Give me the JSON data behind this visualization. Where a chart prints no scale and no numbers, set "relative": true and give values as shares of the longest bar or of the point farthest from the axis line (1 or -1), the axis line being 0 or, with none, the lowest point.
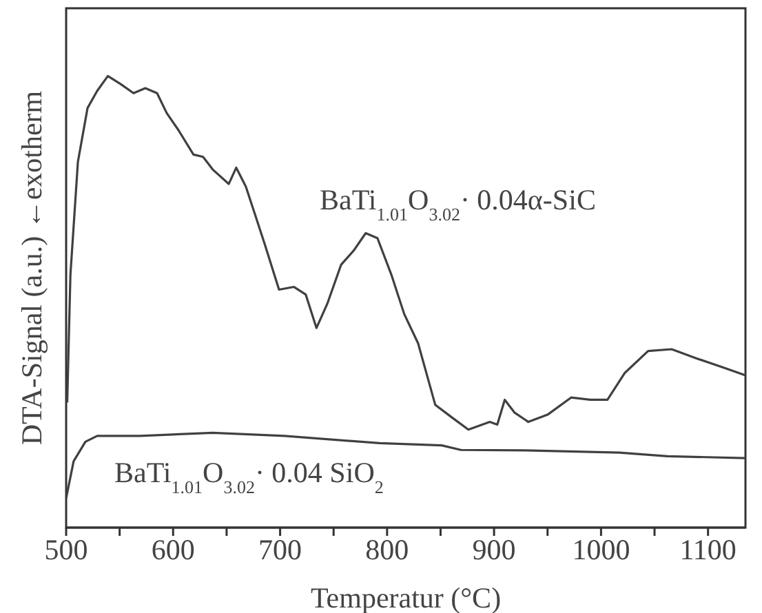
{
  "chart_data": {
    "type": "line",
    "relative": true,
    "xlabel": "Temperatur (°C)",
    "ylabel": "DTA-Signal (a.u.)  ←exotherm",
    "xlim": [
      500,
      1135
    ],
    "xticks": [
      500,
      {
        "value": 550,
        "label": null
      },
      600,
      {
        "value": 650,
        "label": null
      },
      700,
      {
        "value": 750,
        "label": null
      },
      800,
      {
        "value": 850,
        "label": null
      },
      900,
      {
        "value": 950,
        "label": null
      },
      1000,
      {
        "value": 1050,
        "label": null
      },
      1100
    ],
    "series": [
      {
        "name": "BaTi$_{1.01}$O$_{3.02}$· 0.04α-SiC",
        "color": "#404040",
        "x": [
          501,
          504,
          511,
          520,
          529,
          539,
          551,
          563,
          574,
          585,
          594,
          605,
          619,
          628,
          637,
          652,
          659,
          668,
          677,
          686,
          699,
          713,
          724,
          734,
          744,
          757,
          769,
          780,
          791,
          804,
          816,
          829,
          845,
          860,
          876,
          896,
          903,
          910,
          919,
          932,
          950,
          972,
          990,
          1006,
          1022,
          1044,
          1066,
          1089,
          1116,
          1135
        ],
        "values": [
          0.277,
          0.56,
          0.81,
          0.929,
          0.967,
          1.0,
          0.982,
          0.962,
          0.973,
          0.962,
          0.918,
          0.88,
          0.826,
          0.821,
          0.793,
          0.761,
          0.797,
          0.755,
          0.69,
          0.625,
          0.527,
          0.533,
          0.516,
          0.442,
          0.495,
          0.582,
          0.614,
          0.652,
          0.641,
          0.56,
          0.473,
          0.408,
          0.272,
          0.245,
          0.217,
          0.234,
          0.228,
          0.283,
          0.255,
          0.234,
          0.25,
          0.288,
          0.283,
          0.283,
          0.342,
          0.391,
          0.395,
          0.375,
          0.353,
          0.337
        ]
      },
      {
        "name": "BaTi$_{1.01}$O$_{3.02}$· 0.04 SiO$_{2}$",
        "color": "#404040",
        "x": [
          500,
          507,
          518,
          529,
          569,
          637,
          704,
          793,
          851,
          869,
          928,
          1017,
          1062,
          1135
        ],
        "values": [
          0.065,
          0.147,
          0.19,
          0.203,
          0.203,
          0.21,
          0.203,
          0.187,
          0.182,
          0.172,
          0.171,
          0.166,
          0.158,
          0.154
        ]
      }
    ]
  }
}
